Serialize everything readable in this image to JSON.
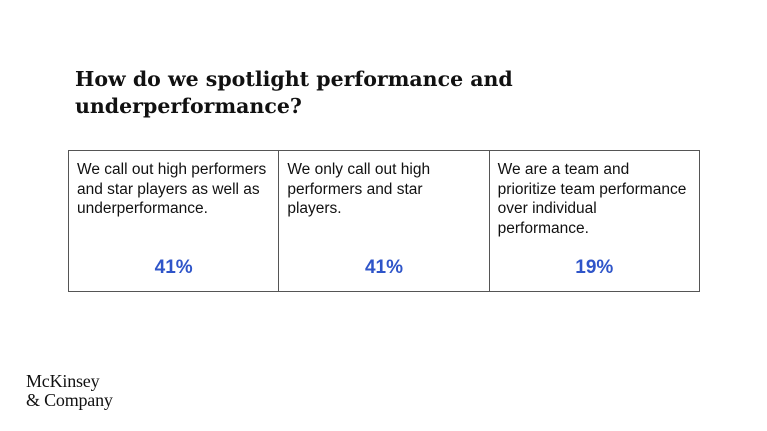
{
  "slide": {
    "title": "How do we spotlight performance and underperformance?",
    "options": [
      {
        "text": "We call out high performers and star players as well as underperformance.",
        "value": "41%"
      },
      {
        "text": "We only call out high performers and star players.",
        "value": "41%"
      },
      {
        "text": "We are a team and prioritize team performance over individual performance.",
        "value": "19%"
      }
    ],
    "accent_color": "#2f55c9"
  },
  "logo": {
    "line1": "McKinsey",
    "line2": "& Company"
  }
}
